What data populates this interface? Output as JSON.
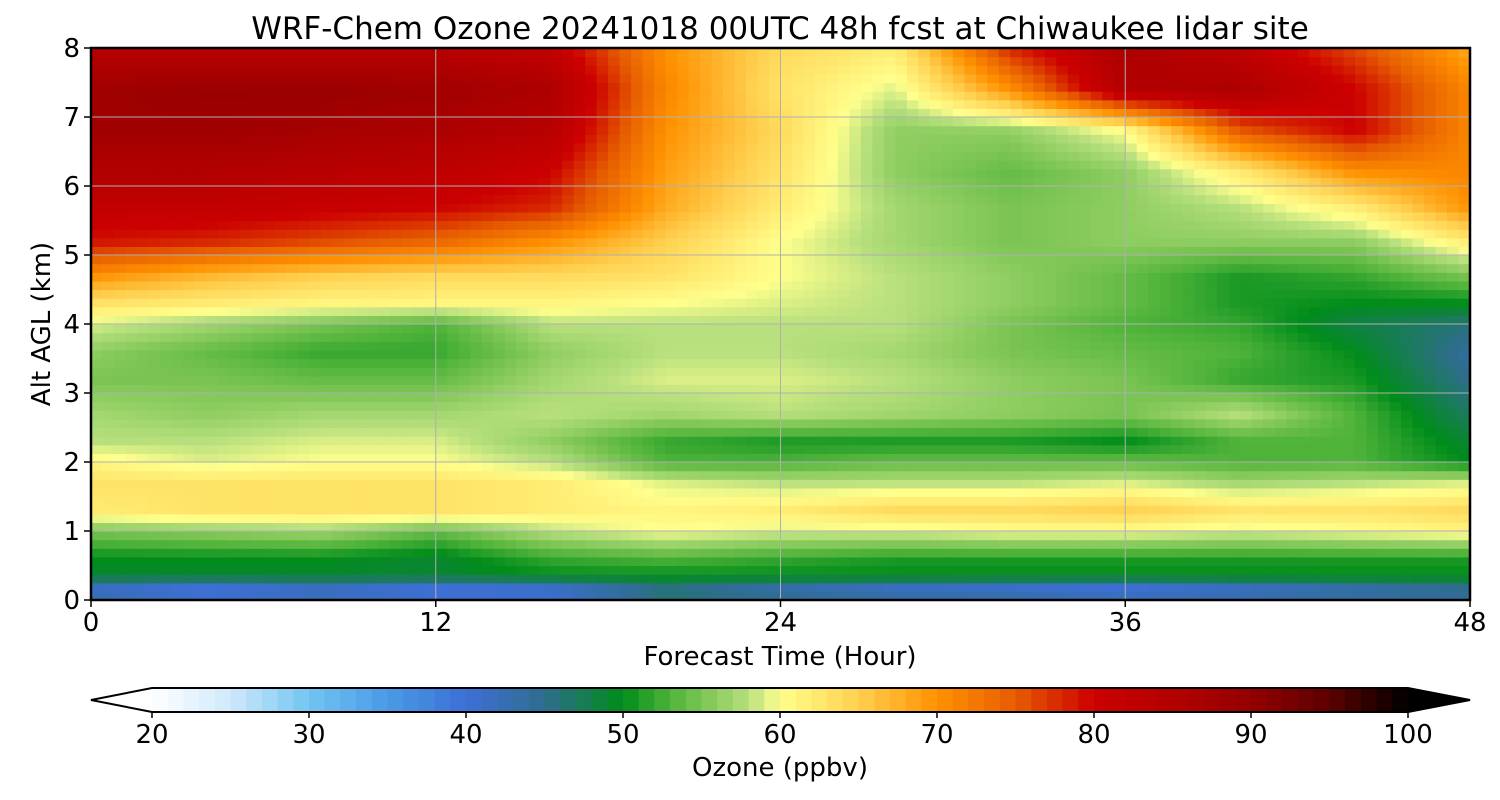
{
  "chart_data": {
    "type": "heatmap",
    "title": "WRF-Chem Ozone  20241018 00UTC 48h fcst at Chiwaukee lidar site",
    "xlabel": "Forecast Time (Hour)",
    "ylabel": "Alt AGL (km)",
    "xlim": [
      0,
      48
    ],
    "ylim": [
      0,
      8
    ],
    "x_ticks": [
      "0",
      "12",
      "24",
      "36",
      "48"
    ],
    "y_ticks": [
      "0",
      "1",
      "2",
      "3",
      "4",
      "5",
      "6",
      "7",
      "8"
    ],
    "grid": true,
    "colorbar": {
      "label": "Ozone  (ppbv)",
      "range": [
        20,
        100
      ],
      "ticks": [
        "20",
        "30",
        "40",
        "50",
        "60",
        "70",
        "80",
        "90",
        "100"
      ],
      "extend": "both",
      "orientation": "horizontal",
      "color_stops": [
        [
          20,
          "#ffffff"
        ],
        [
          25,
          "#cfe9fb"
        ],
        [
          30,
          "#72c4f2"
        ],
        [
          35,
          "#4a9ae6"
        ],
        [
          40,
          "#3d6fd6"
        ],
        [
          45,
          "#2f6d8e"
        ],
        [
          50,
          "#008c1a"
        ],
        [
          53,
          "#4fb33a"
        ],
        [
          55,
          "#7ac453"
        ],
        [
          58,
          "#b8e07e"
        ],
        [
          60,
          "#ffff8c"
        ],
        [
          65,
          "#ffd04f"
        ],
        [
          70,
          "#ff9100"
        ],
        [
          75,
          "#e65c00"
        ],
        [
          80,
          "#cc0000"
        ],
        [
          85,
          "#b30000"
        ],
        [
          90,
          "#940000"
        ],
        [
          95,
          "#5c0000"
        ],
        [
          100,
          "#000000"
        ]
      ]
    },
    "hours": [
      0,
      4,
      8,
      12,
      16,
      20,
      24,
      28,
      32,
      36,
      40,
      44,
      48
    ],
    "altitudes_km": [
      0,
      0.15,
      0.35,
      0.6,
      1.0,
      1.3,
      1.7,
      2.0,
      2.3,
      2.7,
      3.2,
      3.6,
      4.0,
      4.3,
      4.7,
      5.2,
      5.7,
      6.2,
      6.8,
      7.4,
      8.0
    ],
    "ozone_ppbv": [
      [
        44,
        42,
        43,
        42,
        42,
        47,
        46,
        45,
        45,
        44,
        44,
        45,
        45
      ],
      [
        40,
        38,
        40,
        38,
        39,
        45,
        42,
        40,
        39,
        38,
        40,
        42,
        44
      ],
      [
        49,
        49,
        49,
        49,
        50,
        50,
        50,
        50,
        50,
        50,
        50,
        50,
        50
      ],
      [
        50,
        50,
        50,
        49,
        52,
        53,
        52,
        51,
        51,
        51,
        51,
        51,
        51
      ],
      [
        55,
        56,
        57,
        54,
        58,
        60,
        59,
        59,
        60,
        60,
        59,
        60,
        61
      ],
      [
        62,
        63,
        63,
        63,
        62,
        61,
        62,
        64,
        64,
        65,
        63,
        63,
        64
      ],
      [
        63,
        63,
        63,
        63,
        62,
        59,
        58,
        58,
        58,
        59,
        57,
        58,
        59
      ],
      [
        61,
        59,
        60,
        60,
        58,
        53,
        53,
        54,
        54,
        54,
        53,
        53,
        50
      ],
      [
        58,
        58,
        59,
        59,
        56,
        52,
        51,
        51,
        51,
        50,
        53,
        53,
        49
      ],
      [
        57,
        56,
        57,
        57,
        58,
        57,
        58,
        57,
        56,
        55,
        58,
        53,
        47
      ],
      [
        55,
        55,
        54,
        54,
        57,
        59,
        59,
        58,
        56,
        55,
        52,
        51,
        45
      ],
      [
        56,
        54,
        52,
        52,
        56,
        58,
        58,
        57,
        55,
        54,
        53,
        50,
        44
      ],
      [
        59,
        57,
        55,
        53,
        58,
        58,
        58,
        58,
        55,
        53,
        52,
        48,
        46
      ],
      [
        63,
        62,
        61,
        61,
        61,
        60,
        59,
        58,
        56,
        54,
        51,
        50,
        50
      ],
      [
        70,
        67,
        65,
        64,
        64,
        63,
        60,
        58,
        56,
        54,
        51,
        52,
        55
      ],
      [
        79,
        78,
        76,
        74,
        70,
        65,
        60,
        57,
        55,
        56,
        56,
        56,
        62
      ],
      [
        82,
        82,
        81,
        80,
        78,
        68,
        62,
        57,
        55,
        56,
        58,
        62,
        70
      ],
      [
        85,
        85,
        84,
        83,
        80,
        69,
        63,
        56,
        54,
        56,
        62,
        70,
        71
      ],
      [
        88,
        88,
        87,
        86,
        84,
        70,
        64,
        56,
        56,
        60,
        75,
        80,
        71
      ],
      [
        88,
        89,
        89,
        88,
        86,
        71,
        63,
        59,
        70,
        85,
        86,
        80,
        71
      ],
      [
        84,
        84,
        84,
        84,
        82,
        70,
        64,
        62,
        78,
        86,
        83,
        76,
        68
      ]
    ]
  }
}
